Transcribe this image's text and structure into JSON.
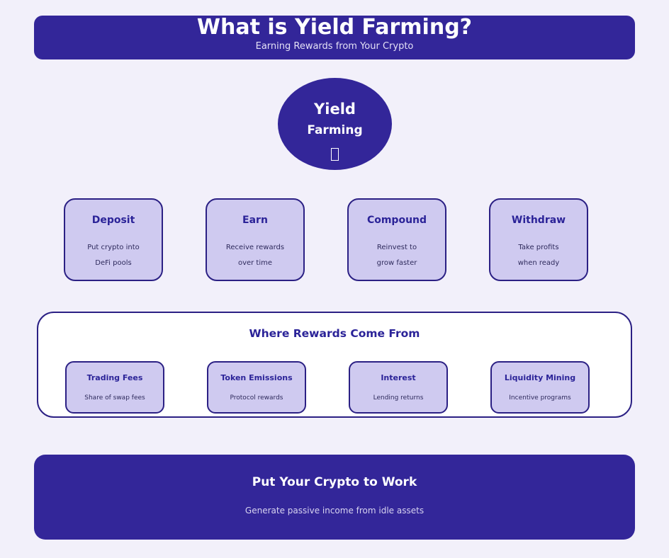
{
  "colors": {
    "page-bg": "#F2F0FA",
    "accent": "#332699",
    "card-fill": "#CFCAF0",
    "card-border": "#2B2084",
    "card-title": "#2B2398",
    "card-desc": "#2E2A5C",
    "panel-bg": "#FFFFFF",
    "banner-text": "#FFFFFF",
    "banner-subtext": "#E4E1F6",
    "footer-subtext": "#D7D3F0"
  },
  "header": {
    "title": "What is Yield Farming?",
    "subtitle": "Earning Rewards from Your Crypto"
  },
  "center_node": {
    "line1": "Yield",
    "line2": "Farming",
    "icon": "missing-emoji-placeholder"
  },
  "steps": [
    {
      "title": "Deposit",
      "desc1": "Put crypto into",
      "desc2": "DeFi pools"
    },
    {
      "title": "Earn",
      "desc1": "Receive rewards",
      "desc2": "over time"
    },
    {
      "title": "Compound",
      "desc1": "Reinvest to",
      "desc2": "grow faster"
    },
    {
      "title": "Withdraw",
      "desc1": "Take profits",
      "desc2": "when ready"
    }
  ],
  "rewards": {
    "heading": "Where Rewards Come From",
    "items": [
      {
        "title": "Trading Fees",
        "desc": "Share of swap fees"
      },
      {
        "title": "Token Emissions",
        "desc": "Protocol rewards"
      },
      {
        "title": "Interest",
        "desc": "Lending returns"
      },
      {
        "title": "Liquidity Mining",
        "desc": "Incentive programs"
      }
    ]
  },
  "footer": {
    "title": "Put Your Crypto to Work",
    "subtitle": "Generate passive income from idle assets"
  }
}
